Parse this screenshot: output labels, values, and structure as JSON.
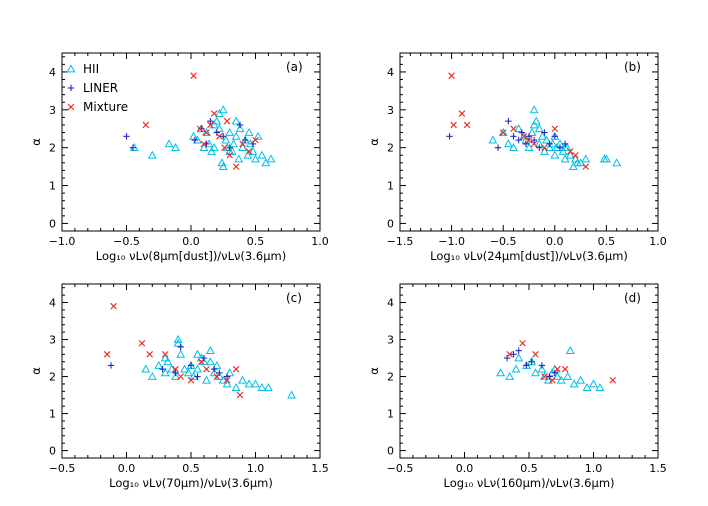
{
  "legend": {
    "HII": {
      "label": "HII",
      "color": "#00bfe6",
      "marker": "triangle-icon"
    },
    "LINER": {
      "label": "LINER",
      "color": "#2626c8",
      "marker": "plus-icon"
    },
    "Mixture": {
      "label": "Mixture",
      "color": "#e8271c",
      "marker": "cross-icon"
    }
  },
  "chart_data": [
    {
      "type": "scatter",
      "tag": "(a)",
      "xlabel": "Log₁₀ νLν(8μm[dust])/νLν(3.6μm)",
      "ylabel": "α",
      "xlim": [
        -1.0,
        1.0
      ],
      "ylim": [
        -0.2,
        4.5
      ],
      "xticks": [
        -1.0,
        -0.5,
        0.0,
        0.5,
        1.0
      ],
      "xtick_labels": [
        "−1.0",
        "−0.5",
        "0.0",
        "0.5",
        "1.0"
      ],
      "yticks": [
        0,
        1,
        2,
        3,
        4
      ],
      "ytick_labels": [
        "0",
        "1",
        "2",
        "3",
        "4"
      ],
      "legend_position": "top-left",
      "series": [
        {
          "name": "HII",
          "x": [
            -0.44,
            -0.3,
            -0.17,
            -0.12,
            0.02,
            0.05,
            0.08,
            0.1,
            0.12,
            0.14,
            0.16,
            0.18,
            0.2,
            0.22,
            0.24,
            0.25,
            0.27,
            0.28,
            0.3,
            0.32,
            0.33,
            0.35,
            0.37,
            0.38,
            0.4,
            0.42,
            0.44,
            0.46,
            0.48,
            0.5,
            0.52,
            0.55,
            0.58,
            0.62,
            0.25,
            0.22,
            0.35,
            0.18,
            0.3,
            0.45
          ],
          "y": [
            2.0,
            1.8,
            2.1,
            2.0,
            2.3,
            2.2,
            2.5,
            2.0,
            2.4,
            2.1,
            1.9,
            2.6,
            2.7,
            2.5,
            1.6,
            1.5,
            2.2,
            2.0,
            2.4,
            1.9,
            2.1,
            2.3,
            1.7,
            2.5,
            2.0,
            2.2,
            1.8,
            2.1,
            1.9,
            1.7,
            2.3,
            1.8,
            1.6,
            1.7,
            3.0,
            2.9,
            2.7,
            2.0,
            1.9,
            2.4
          ]
        },
        {
          "name": "LINER",
          "x": [
            -0.5,
            -0.45,
            0.03,
            0.08,
            0.12,
            0.15,
            0.2,
            0.25,
            0.3,
            0.38,
            0.42,
            0.48
          ],
          "y": [
            2.3,
            2.0,
            2.2,
            2.5,
            2.1,
            2.7,
            2.4,
            2.3,
            2.0,
            2.6,
            2.2,
            2.1
          ]
        },
        {
          "name": "Mixture",
          "x": [
            -0.35,
            0.02,
            0.07,
            0.1,
            0.15,
            0.18,
            0.22,
            0.26,
            0.3,
            0.35,
            0.4,
            0.45,
            0.5,
            0.12,
            0.28
          ],
          "y": [
            2.6,
            3.9,
            2.5,
            2.1,
            2.6,
            2.9,
            2.3,
            2.0,
            1.8,
            1.5,
            2.1,
            1.9,
            2.2,
            2.4,
            2.7
          ]
        }
      ]
    },
    {
      "type": "scatter",
      "tag": "(b)",
      "xlabel": "Log₁₀ νLν(24μm[dust])/νLν(3.6μm)",
      "ylabel": "α",
      "xlim": [
        -1.5,
        1.0
      ],
      "ylim": [
        -0.2,
        4.5
      ],
      "xticks": [
        -1.5,
        -1.0,
        -0.5,
        0.0,
        0.5,
        1.0
      ],
      "xtick_labels": [
        "−1.5",
        "−1.0",
        "−0.5",
        "0.0",
        "0.5",
        "1.0"
      ],
      "yticks": [
        0,
        1,
        2,
        3,
        4
      ],
      "ytick_labels": [
        "0",
        "1",
        "2",
        "3",
        "4"
      ],
      "series": [
        {
          "name": "HII",
          "x": [
            -0.6,
            -0.5,
            -0.45,
            -0.4,
            -0.35,
            -0.3,
            -0.28,
            -0.25,
            -0.22,
            -0.2,
            -0.18,
            -0.15,
            -0.12,
            -0.1,
            -0.08,
            -0.05,
            -0.02,
            0.0,
            0.02,
            0.05,
            0.08,
            0.1,
            0.12,
            0.15,
            0.18,
            0.2,
            0.22,
            0.25,
            0.3,
            0.48,
            0.5,
            0.6,
            -0.2,
            -0.15,
            0.1,
            0.0
          ],
          "y": [
            2.2,
            2.4,
            2.1,
            2.0,
            2.5,
            2.3,
            2.2,
            2.0,
            2.4,
            3.0,
            2.7,
            2.1,
            2.3,
            1.9,
            2.2,
            2.0,
            2.1,
            1.8,
            2.0,
            2.1,
            1.9,
            1.7,
            2.0,
            1.8,
            1.5,
            1.7,
            1.6,
            1.6,
            1.7,
            1.7,
            1.7,
            1.6,
            2.6,
            2.5,
            2.0,
            2.3
          ]
        },
        {
          "name": "LINER",
          "x": [
            -1.02,
            -0.55,
            -0.45,
            -0.4,
            -0.35,
            -0.32,
            -0.28,
            -0.25,
            -0.2,
            -0.15,
            -0.1,
            -0.05,
            0.0,
            0.05,
            0.1
          ],
          "y": [
            2.3,
            2.0,
            2.7,
            2.3,
            2.2,
            2.4,
            2.1,
            2.3,
            2.2,
            2.0,
            2.4,
            2.1,
            2.3,
            2.0,
            2.1
          ]
        },
        {
          "name": "Mixture",
          "x": [
            -1.0,
            -0.98,
            -0.9,
            -0.85,
            -0.5,
            -0.4,
            -0.3,
            -0.25,
            -0.2,
            0.0,
            0.15,
            0.2,
            0.3,
            -0.1
          ],
          "y": [
            3.9,
            2.6,
            2.9,
            2.6,
            2.4,
            2.5,
            2.3,
            2.2,
            2.1,
            2.5,
            1.9,
            1.8,
            1.5,
            2.0
          ]
        }
      ]
    },
    {
      "type": "scatter",
      "tag": "(c)",
      "xlabel": "Log₁₀ νLν(70μm)/νLν(3.6μm)",
      "ylabel": "α",
      "xlim": [
        -0.5,
        1.5
      ],
      "ylim": [
        -0.2,
        4.5
      ],
      "xticks": [
        -0.5,
        0.0,
        0.5,
        1.0,
        1.5
      ],
      "xtick_labels": [
        "−0.5",
        "0.0",
        "0.5",
        "1.0",
        "1.5"
      ],
      "yticks": [
        0,
        1,
        2,
        3,
        4
      ],
      "ytick_labels": [
        "0",
        "1",
        "2",
        "3",
        "4"
      ],
      "series": [
        {
          "name": "HII",
          "x": [
            0.15,
            0.2,
            0.25,
            0.3,
            0.32,
            0.35,
            0.38,
            0.4,
            0.42,
            0.45,
            0.48,
            0.5,
            0.52,
            0.55,
            0.58,
            0.6,
            0.62,
            0.65,
            0.68,
            0.7,
            0.72,
            0.75,
            0.78,
            0.8,
            0.85,
            0.9,
            0.95,
            1.0,
            1.05,
            1.1,
            1.28,
            0.4,
            0.55,
            0.65,
            0.3
          ],
          "y": [
            2.2,
            2.0,
            2.3,
            2.1,
            2.4,
            2.2,
            2.0,
            3.0,
            2.6,
            2.2,
            2.1,
            2.3,
            2.0,
            2.2,
            2.5,
            2.4,
            1.9,
            2.7,
            2.1,
            2.3,
            2.0,
            1.9,
            1.8,
            2.1,
            1.7,
            1.9,
            1.8,
            1.8,
            1.7,
            1.7,
            1.5,
            2.9,
            2.6,
            2.4,
            2.5
          ]
        },
        {
          "name": "LINER",
          "x": [
            -0.12,
            0.28,
            0.38,
            0.42,
            0.5,
            0.55,
            0.6,
            0.68,
            0.72,
            0.78
          ],
          "y": [
            2.3,
            2.2,
            2.1,
            2.8,
            2.3,
            2.0,
            2.5,
            2.2,
            2.1,
            2.0
          ]
        },
        {
          "name": "Mixture",
          "x": [
            -0.15,
            -0.1,
            0.12,
            0.18,
            0.3,
            0.38,
            0.42,
            0.5,
            0.58,
            0.62,
            0.7,
            0.78,
            0.85,
            0.88
          ],
          "y": [
            2.6,
            3.9,
            2.9,
            2.6,
            2.6,
            2.2,
            2.0,
            1.9,
            2.4,
            2.2,
            2.0,
            1.9,
            2.2,
            1.5
          ]
        }
      ]
    },
    {
      "type": "scatter",
      "tag": "(d)",
      "xlabel": "Log₁₀ νLν(160μm)/νLν(3.6μm)",
      "ylabel": "α",
      "xlim": [
        -0.5,
        1.5
      ],
      "ylim": [
        -0.2,
        4.5
      ],
      "xticks": [
        -0.5,
        0.0,
        0.5,
        1.0,
        1.5
      ],
      "xtick_labels": [
        "−0.5",
        "0.0",
        "0.5",
        "1.0",
        "1.5"
      ],
      "yticks": [
        0,
        1,
        2,
        3,
        4
      ],
      "ytick_labels": [
        "0",
        "1",
        "2",
        "3",
        "4"
      ],
      "series": [
        {
          "name": "HII",
          "x": [
            0.28,
            0.35,
            0.4,
            0.42,
            0.48,
            0.52,
            0.55,
            0.6,
            0.62,
            0.65,
            0.68,
            0.7,
            0.72,
            0.75,
            0.8,
            0.82,
            0.85,
            0.9,
            0.95,
            1.0,
            1.05
          ],
          "y": [
            2.1,
            2.0,
            2.2,
            2.5,
            2.3,
            2.4,
            2.1,
            2.2,
            2.0,
            1.9,
            2.1,
            2.2,
            2.0,
            1.9,
            2.0,
            2.7,
            1.8,
            1.9,
            1.7,
            1.8,
            1.7
          ]
        },
        {
          "name": "LINER",
          "x": [
            0.33,
            0.38,
            0.42,
            0.48,
            0.52,
            0.6,
            0.66,
            0.7
          ],
          "y": [
            2.5,
            2.6,
            2.7,
            2.3,
            2.4,
            2.3,
            2.0,
            2.1
          ]
        },
        {
          "name": "Mixture",
          "x": [
            0.35,
            0.45,
            0.55,
            0.62,
            0.68,
            0.72,
            0.78,
            1.15
          ],
          "y": [
            2.6,
            2.9,
            2.6,
            2.0,
            1.9,
            2.2,
            2.2,
            1.9
          ]
        }
      ]
    }
  ]
}
